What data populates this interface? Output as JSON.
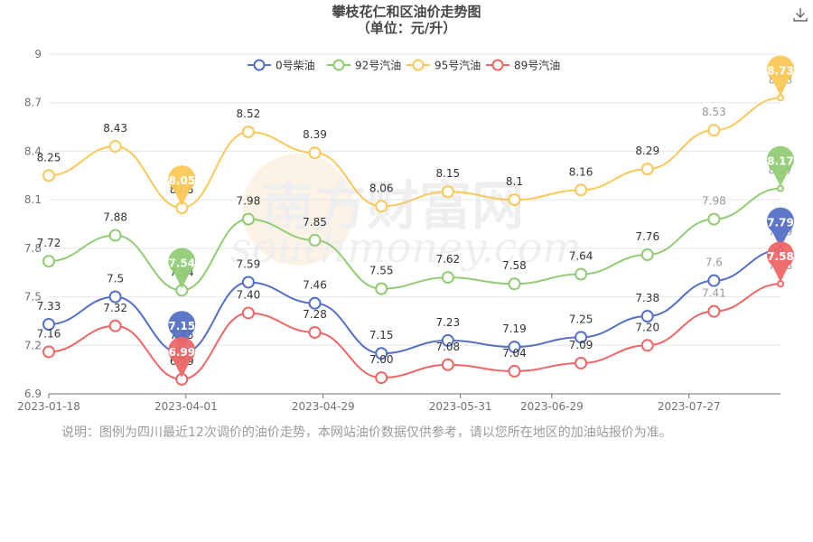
{
  "chart_data": {
    "type": "line",
    "title": "攀枝花仁和区油价走势图",
    "subtitle": "（单位：元/升）",
    "xlabel": "",
    "ylabel": "",
    "ylim": [
      6.9,
      9
    ],
    "y_ticks": [
      "6.9",
      "7.2",
      "7.5",
      "7.8",
      "8.1",
      "8.4",
      "8.7",
      "9"
    ],
    "x_tick_labels": [
      "2023-01-18",
      "2023-04-01",
      "2023-04-29",
      "2023-05-31",
      "2023-06-29",
      "2023-07-27"
    ],
    "x_tick_indices": [
      0,
      3,
      6,
      9,
      11,
      14
    ],
    "grid": true,
    "legend_position": "top-center",
    "series": [
      {
        "name": "0号柴油",
        "color": "#5470c6",
        "label_dy": -16,
        "pin": "7.79",
        "values": [
          7.33,
          7.5,
          7.15,
          7.59,
          7.46,
          7.15,
          7.23,
          7.19,
          7.25,
          7.38,
          7.6,
          7.79
        ],
        "labels": [
          "7.33",
          "7.5",
          "7.15",
          "7.59",
          "7.46",
          "7.15",
          "7.23",
          "7.19",
          "7.25",
          "7.38",
          "7.6",
          "7.79"
        ]
      },
      {
        "name": "92号汽油",
        "color": "#91cc75",
        "label_dy": -16,
        "pin": "8.17",
        "values": [
          7.72,
          7.88,
          7.54,
          7.98,
          7.85,
          7.55,
          7.62,
          7.58,
          7.64,
          7.76,
          7.98,
          8.17
        ],
        "labels": [
          "7.72",
          "7.88",
          "7.54",
          "7.98",
          "7.85",
          "7.55",
          "7.62",
          "7.58",
          "7.64",
          "7.76",
          "7.98",
          "8.17"
        ]
      },
      {
        "name": "95号汽油",
        "color": "#fac858",
        "label_dy": -16,
        "pin": "8.73",
        "values": [
          8.25,
          8.43,
          8.05,
          8.52,
          8.39,
          8.06,
          8.15,
          8.1,
          8.16,
          8.29,
          8.53,
          8.73
        ],
        "labels": [
          "8.25",
          "8.43",
          "8.05",
          "8.52",
          "8.39",
          "8.06",
          "8.15",
          "8.1",
          "8.16",
          "8.29",
          "8.53",
          "8.73"
        ]
      },
      {
        "name": "89号汽油",
        "color": "#ee6666",
        "label_dy": -16,
        "pin": "7.58",
        "values": [
          7.16,
          7.32,
          6.99,
          7.4,
          7.28,
          7.0,
          7.08,
          7.04,
          7.09,
          7.2,
          7.41,
          7.58
        ],
        "labels": [
          "7.16",
          "7.32",
          "6.99",
          "7.40",
          "7.28",
          "7.00",
          "7.08",
          "7.04",
          "7.09",
          "7.20",
          "7.41",
          "7.58"
        ]
      }
    ],
    "pin_min_index": 2,
    "pin_max_index": 11
  },
  "note": "说明：图例为四川最近12次调价的油价走势，本网站油价数据仅供参考，请以您所在地区的加油站报价为准。",
  "watermark": "南方财富网 southmoney.com"
}
